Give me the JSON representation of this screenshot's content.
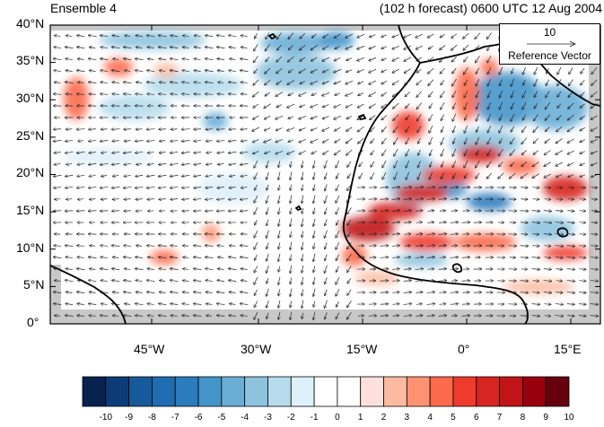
{
  "title_left": "Ensemble 4",
  "title_right": "(102 h forecast) 0600 UTC 12 Aug 2004",
  "y_ticks": [
    "40°N",
    "35°N",
    "30°N",
    "25°N",
    "20°N",
    "15°N",
    "10°N",
    "5°N",
    "0°"
  ],
  "x_ticks": [
    "45°W",
    "30°W",
    "15°W",
    "0°",
    "15°E"
  ],
  "reference_vector": {
    "magnitude": "10",
    "label": "Reference Vector"
  },
  "colorbar": {
    "labels": [
      "-10",
      "-9",
      "-8",
      "-7",
      "-6",
      "-5",
      "-4",
      "-3",
      "-2",
      "-1",
      "0",
      "1",
      "2",
      "3",
      "4",
      "5",
      "6",
      "7",
      "8",
      "9",
      "10"
    ],
    "colors": [
      "#08224f",
      "#0c3c78",
      "#165a9a",
      "#1f6cb0",
      "#2b7cbc",
      "#4495c9",
      "#6aaed6",
      "#8ec3de",
      "#b6dbed",
      "#def0fa",
      "#ffffff",
      "#ffffff",
      "#fde0dc",
      "#fcbba1",
      "#fc9272",
      "#fb6a4a",
      "#ef3b2c",
      "#d7251f",
      "#c01418",
      "#99000d",
      "#67000d"
    ]
  },
  "colors": {
    "land_outline": "#000000",
    "masked": "#c8c8c8",
    "arrow": "#222222"
  }
}
